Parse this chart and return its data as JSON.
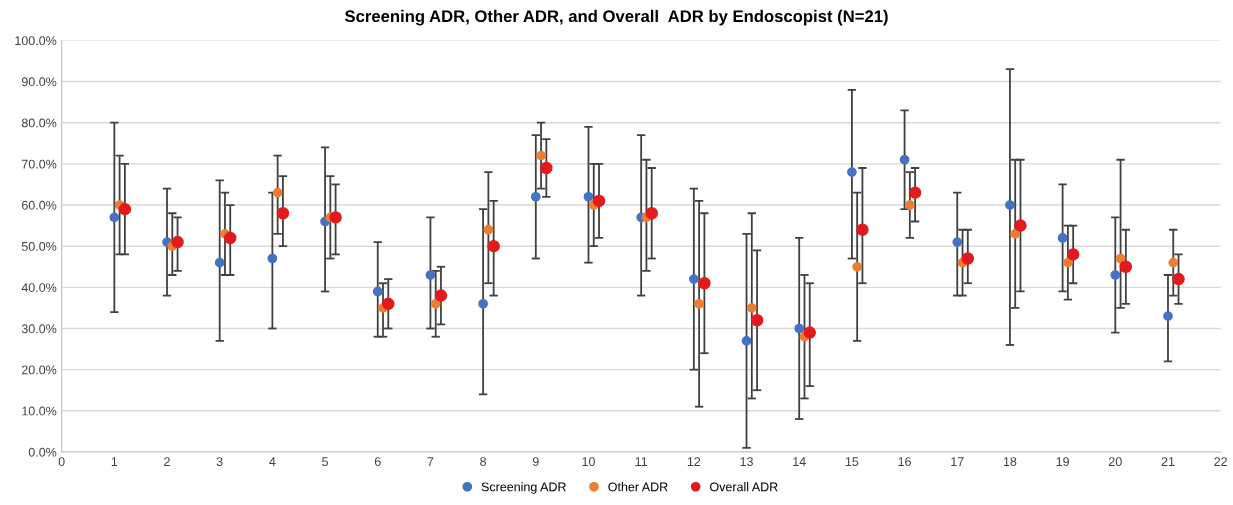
{
  "chart_data": {
    "type": "scatter",
    "title": "Screening ADR, Other ADR, and Overall  ADR by Endoscopist (N=21)",
    "xlim": [
      0,
      22
    ],
    "xticks": [
      0,
      1,
      2,
      3,
      4,
      5,
      6,
      7,
      8,
      9,
      10,
      11,
      12,
      13,
      14,
      15,
      16,
      17,
      18,
      19,
      20,
      21,
      22
    ],
    "ylim": [
      0,
      100
    ],
    "yticks": [
      {
        "value": 0,
        "label": "0.0%"
      },
      {
        "value": 10,
        "label": "10.0%"
      },
      {
        "value": 20,
        "label": "20.0%"
      },
      {
        "value": 30,
        "label": "30.0%"
      },
      {
        "value": 40,
        "label": "40.0%"
      },
      {
        "value": 50,
        "label": "50.0%"
      },
      {
        "value": 60,
        "label": "60.0%"
      },
      {
        "value": 70,
        "label": "70.0%"
      },
      {
        "value": 80,
        "label": "80.0%"
      },
      {
        "value": 90,
        "label": "90.0%"
      },
      {
        "value": 100,
        "label": "100.0%"
      }
    ],
    "grid": "y",
    "legend": "bottom",
    "marker": "circle",
    "series": [
      {
        "name": "Screening ADR",
        "color": "#4472c4",
        "x": [
          1,
          2,
          3,
          4,
          5,
          6,
          7,
          8,
          9,
          10,
          11,
          12,
          13,
          14,
          15,
          16,
          17,
          18,
          19,
          20,
          21
        ],
        "values": [
          57,
          51,
          46,
          47,
          56,
          39,
          43,
          36,
          62,
          62,
          57,
          42,
          27,
          30,
          68,
          71,
          51,
          60,
          52,
          43,
          33
        ],
        "errors": [
          [
            34,
            80
          ],
          [
            38,
            64
          ],
          [
            27,
            66
          ],
          [
            30,
            63
          ],
          [
            39,
            74
          ],
          [
            28,
            51
          ],
          [
            30,
            57
          ],
          [
            14,
            59
          ],
          [
            47,
            77
          ],
          [
            46,
            79
          ],
          [
            38,
            77
          ],
          [
            20,
            64
          ],
          [
            1,
            53
          ],
          [
            8,
            52
          ],
          [
            47,
            88
          ],
          [
            59,
            83
          ],
          [
            38,
            63
          ],
          [
            26,
            93
          ],
          [
            39,
            65
          ],
          [
            29,
            57
          ],
          [
            22,
            43
          ]
        ]
      },
      {
        "name": "Other ADR",
        "color": "#ed7d31",
        "x": [
          1.1,
          2.1,
          3.1,
          4.1,
          5.1,
          6.1,
          7.1,
          8.1,
          9.1,
          10.1,
          11.1,
          12.1,
          13.1,
          14.1,
          15.1,
          16.1,
          17.1,
          18.1,
          19.1,
          20.1,
          21.1
        ],
        "values": [
          60,
          50,
          53,
          63,
          57,
          35,
          36,
          54,
          72,
          60,
          57,
          36,
          35,
          28,
          45,
          60,
          46,
          53,
          46,
          47,
          46
        ],
        "errors": [
          [
            48,
            72
          ],
          [
            43,
            58
          ],
          [
            43,
            63
          ],
          [
            53,
            72
          ],
          [
            47,
            67
          ],
          [
            28,
            41
          ],
          [
            28,
            44
          ],
          [
            41,
            68
          ],
          [
            64,
            80
          ],
          [
            50,
            70
          ],
          [
            44,
            71
          ],
          [
            11,
            61
          ],
          [
            13,
            58
          ],
          [
            13,
            43
          ],
          [
            27,
            63
          ],
          [
            52,
            68
          ],
          [
            38,
            54
          ],
          [
            35,
            71
          ],
          [
            37,
            55
          ],
          [
            35,
            71
          ],
          [
            38,
            54
          ]
        ]
      },
      {
        "name": "Overall ADR",
        "color": "#e31a1c",
        "x": [
          1.2,
          2.2,
          3.2,
          4.2,
          5.2,
          6.2,
          7.2,
          8.2,
          9.2,
          10.2,
          11.2,
          12.2,
          13.2,
          14.2,
          15.2,
          16.2,
          17.2,
          18.2,
          19.2,
          20.2,
          21.2
        ],
        "values": [
          59,
          51,
          52,
          58,
          57,
          36,
          38,
          50,
          69,
          61,
          58,
          41,
          32,
          29,
          54,
          63,
          47,
          55,
          48,
          45,
          42
        ],
        "errors": [
          [
            48,
            70
          ],
          [
            44,
            57
          ],
          [
            43,
            60
          ],
          [
            50,
            67
          ],
          [
            48,
            65
          ],
          [
            30,
            42
          ],
          [
            31,
            45
          ],
          [
            38,
            61
          ],
          [
            62,
            76
          ],
          [
            52,
            70
          ],
          [
            47,
            69
          ],
          [
            24,
            58
          ],
          [
            15,
            49
          ],
          [
            16,
            41
          ],
          [
            41,
            69
          ],
          [
            56,
            69
          ],
          [
            41,
            54
          ],
          [
            39,
            71
          ],
          [
            41,
            55
          ],
          [
            36,
            54
          ],
          [
            36,
            48
          ]
        ]
      }
    ]
  }
}
